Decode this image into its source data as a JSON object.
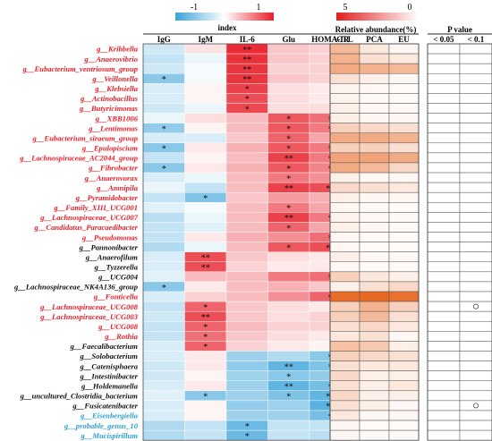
{
  "chart_data": {
    "type": "heatmap",
    "legend_corr": {
      "title": "index",
      "min_label": "-1",
      "max_label": "1",
      "colors": [
        "#3aa3d9",
        "#ffffff",
        "#e8202a"
      ]
    },
    "legend_abund": {
      "title": "Relative abundance(%)",
      "left_label": "5",
      "right_label": "0",
      "colors": [
        "#e02020",
        "#ffffff"
      ]
    },
    "pvalue_header": "P value",
    "pvalue_columns": [
      "< 0.05",
      "< 0.1"
    ],
    "corr_columns": [
      "IgG",
      "IgM",
      "IL-6",
      "Glu",
      "HOMA-IR"
    ],
    "abund_columns": [
      "CTL",
      "PCA",
      "EU"
    ],
    "label_colors": {
      "red": "#e8202a",
      "black": "#111111",
      "blue": "#2a9fd6"
    },
    "rows": [
      {
        "name": "g__Kribbella",
        "color": "red",
        "corr": [
          -0.25,
          0.12,
          0.95,
          0.25,
          0.2
        ],
        "stars": [
          "",
          "",
          "**",
          "",
          ""
        ],
        "abund": [
          0.45,
          0.15,
          0.05
        ],
        "p": [
          "",
          ""
        ]
      },
      {
        "name": "g__Anaerovibrio",
        "color": "red",
        "corr": [
          -0.3,
          -0.1,
          0.92,
          0.25,
          0.2
        ],
        "stars": [
          "",
          "",
          "**",
          "",
          ""
        ],
        "abund": [
          0.5,
          0.2,
          0.15
        ],
        "p": [
          "",
          ""
        ]
      },
      {
        "name": "g__Eubacterium_ventriosum_group",
        "color": "red",
        "corr": [
          -0.25,
          -0.05,
          0.9,
          0.2,
          0.2
        ],
        "stars": [
          "",
          "",
          "**",
          "",
          ""
        ],
        "abund": [
          0.55,
          0.5,
          0.45
        ],
        "p": [
          "",
          ""
        ]
      },
      {
        "name": "g__Veillonella",
        "color": "red",
        "corr": [
          -0.6,
          -0.05,
          0.9,
          0.25,
          0.2
        ],
        "stars": [
          "*",
          "",
          "**",
          "",
          ""
        ],
        "abund": [
          0.2,
          0.1,
          0.05
        ],
        "p": [
          "",
          ""
        ]
      },
      {
        "name": "g__Klebsiella",
        "color": "red",
        "corr": [
          -0.2,
          0.05,
          0.85,
          0.15,
          0.1
        ],
        "stars": [
          "",
          "",
          "*",
          "",
          ""
        ],
        "abund": [
          0.08,
          0.05,
          0.03
        ],
        "p": [
          "",
          ""
        ]
      },
      {
        "name": "g__Actinobacillus",
        "color": "red",
        "corr": [
          -0.2,
          0.05,
          0.8,
          0.15,
          0.1
        ],
        "stars": [
          "",
          "",
          "*",
          "",
          ""
        ],
        "abund": [
          0.08,
          0.04,
          0.03
        ],
        "p": [
          "",
          ""
        ]
      },
      {
        "name": "g__Butyricimonas",
        "color": "red",
        "corr": [
          -0.25,
          -0.1,
          0.82,
          0.15,
          0.15
        ],
        "stars": [
          "",
          "",
          "*",
          "",
          ""
        ],
        "abund": [
          0.1,
          0.05,
          0.05
        ],
        "p": [
          "",
          ""
        ]
      },
      {
        "name": "g__XBB1006",
        "color": "red",
        "corr": [
          -0.1,
          0.15,
          0.3,
          0.75,
          0.65
        ],
        "stars": [
          "",
          "",
          "",
          "*",
          "*"
        ],
        "abund": [
          0.1,
          0.05,
          0.05
        ],
        "p": [
          "",
          ""
        ]
      },
      {
        "name": "g__Lentimonas",
        "color": "red",
        "corr": [
          -0.55,
          0.05,
          0.3,
          0.75,
          0.6
        ],
        "stars": [
          "*",
          "",
          "",
          "*",
          "*"
        ],
        "abund": [
          0.3,
          0.25,
          0.2
        ],
        "p": [
          "",
          ""
        ]
      },
      {
        "name": "g__Eubacterium_siraeum_group",
        "color": "red",
        "corr": [
          -0.2,
          -0.2,
          0.25,
          0.7,
          0.4
        ],
        "stars": [
          "",
          "",
          "",
          "*",
          ""
        ],
        "abund": [
          0.55,
          0.55,
          0.5
        ],
        "p": [
          "",
          ""
        ]
      },
      {
        "name": "g__Epulopiscium",
        "color": "red",
        "corr": [
          -0.6,
          0.1,
          0.35,
          0.75,
          0.6
        ],
        "stars": [
          "*",
          "",
          "",
          "*",
          "*"
        ],
        "abund": [
          0.3,
          0.3,
          0.2
        ],
        "p": [
          "",
          ""
        ]
      },
      {
        "name": "g__Lachnospiraceae_AC2044_group",
        "color": "red",
        "corr": [
          -0.3,
          0.05,
          0.3,
          0.85,
          0.6
        ],
        "stars": [
          "",
          "",
          "",
          "**",
          "*"
        ],
        "abund": [
          0.6,
          0.6,
          0.55
        ],
        "p": [
          "",
          ""
        ]
      },
      {
        "name": "g__Fibrobacter",
        "color": "red",
        "corr": [
          -0.6,
          0.1,
          0.35,
          0.75,
          0.55
        ],
        "stars": [
          "*",
          "",
          "",
          "*",
          "*"
        ],
        "abund": [
          0.55,
          0.45,
          0.25
        ],
        "p": [
          "",
          ""
        ]
      },
      {
        "name": "g__Anaerovorax",
        "color": "red",
        "corr": [
          -0.2,
          -0.1,
          0.3,
          0.6,
          0.5
        ],
        "stars": [
          "",
          "",
          "",
          "*",
          ""
        ],
        "abund": [
          0.1,
          0.05,
          0.05
        ],
        "p": [
          "",
          ""
        ]
      },
      {
        "name": "g__Amnipila",
        "color": "red",
        "corr": [
          -0.1,
          -0.3,
          0.3,
          0.85,
          0.8
        ],
        "stars": [
          "",
          "",
          "",
          "**",
          "**"
        ],
        "abund": [
          0.25,
          0.2,
          0.15
        ],
        "p": [
          "",
          ""
        ]
      },
      {
        "name": "g__Pyramidobacter",
        "color": "red",
        "corr": [
          -0.3,
          -0.65,
          0.25,
          0.45,
          0.35
        ],
        "stars": [
          "",
          "*",
          "",
          "",
          ""
        ],
        "abund": [
          0.1,
          0.05,
          0.05
        ],
        "p": [
          "",
          ""
        ]
      },
      {
        "name": "g__Family_XIII_UCG001",
        "color": "red",
        "corr": [
          -0.15,
          -0.05,
          0.3,
          0.6,
          0.4
        ],
        "stars": [
          "",
          "",
          "",
          "*",
          ""
        ],
        "abund": [
          0.05,
          0.03,
          0.02
        ],
        "p": [
          "",
          ""
        ]
      },
      {
        "name": "g__Lachnospiraceae_UCG007",
        "color": "red",
        "corr": [
          -0.35,
          -0.1,
          0.3,
          0.85,
          0.6
        ],
        "stars": [
          "",
          "",
          "",
          "**",
          "*"
        ],
        "abund": [
          0.08,
          0.05,
          0.04
        ],
        "p": [
          "",
          ""
        ]
      },
      {
        "name": "g__Candidatus_Paracaedibacter",
        "color": "red",
        "corr": [
          -0.3,
          -0.15,
          0.3,
          0.7,
          0.4
        ],
        "stars": [
          "",
          "",
          "",
          "*",
          ""
        ],
        "abund": [
          0.1,
          0.05,
          0.03
        ],
        "p": [
          "",
          ""
        ]
      },
      {
        "name": "g__Pseudomonas",
        "color": "red",
        "corr": [
          -0.3,
          0.1,
          0.35,
          0.5,
          0.65
        ],
        "stars": [
          "",
          "",
          "",
          "",
          "*"
        ],
        "abund": [
          0.05,
          0.04,
          0.03
        ],
        "p": [
          "",
          ""
        ]
      },
      {
        "name": "g__Pannonibacter",
        "color": "black",
        "corr": [
          -0.4,
          -0.1,
          0.3,
          0.75,
          0.8
        ],
        "stars": [
          "",
          "",
          "",
          "*",
          "**"
        ],
        "abund": [
          0.05,
          0.03,
          0.03
        ],
        "p": [
          "",
          ""
        ]
      },
      {
        "name": "g__Anaerofilum",
        "color": "black",
        "corr": [
          -0.2,
          0.8,
          0.25,
          0.15,
          0.1
        ],
        "stars": [
          "",
          "**",
          "",
          "",
          ""
        ],
        "abund": [
          0.1,
          0.05,
          0.05
        ],
        "p": [
          "",
          ""
        ]
      },
      {
        "name": "g__Tyzzerella",
        "color": "black",
        "corr": [
          -0.2,
          0.8,
          0.2,
          0.1,
          0.1
        ],
        "stars": [
          "",
          "**",
          "",
          "",
          ""
        ],
        "abund": [
          0.05,
          0.03,
          0.03
        ],
        "p": [
          "",
          ""
        ]
      },
      {
        "name": "g__UCG004",
        "color": "black",
        "corr": [
          -0.15,
          0.3,
          0.3,
          0.6,
          0.65
        ],
        "stars": [
          "",
          "",
          "",
          "",
          "*"
        ],
        "abund": [
          0.3,
          0.15,
          0.1
        ],
        "p": [
          "",
          ""
        ]
      },
      {
        "name": "g__Lachnospiraceae_NK4A136_group",
        "color": "black",
        "corr": [
          -0.6,
          0.1,
          0.3,
          0.35,
          0.25
        ],
        "stars": [
          "*",
          "",
          "",
          "",
          ""
        ],
        "abund": [
          0.1,
          0.2,
          0.25
        ],
        "p": [
          "",
          ""
        ]
      },
      {
        "name": "g__Fonticella",
        "color": "red",
        "corr": [
          -0.2,
          0.2,
          0.3,
          0.5,
          0.7
        ],
        "stars": [
          "",
          "",
          "",
          "",
          "*"
        ],
        "abund": [
          0.95,
          0.98,
          0.92
        ],
        "p": [
          "",
          ""
        ]
      },
      {
        "name": "g__Lachnospiraceae_UCG008",
        "color": "red",
        "corr": [
          -0.3,
          0.7,
          0.25,
          0.15,
          0.1
        ],
        "stars": [
          "",
          "*",
          "",
          "",
          ""
        ],
        "abund": [
          0.3,
          0.5,
          0.3
        ],
        "p": [
          "",
          "o"
        ]
      },
      {
        "name": "g__Lachnospiraceae_UCG003",
        "color": "red",
        "corr": [
          -0.25,
          0.8,
          0.25,
          0.15,
          0.2
        ],
        "stars": [
          "",
          "**",
          "",
          "",
          ""
        ],
        "abund": [
          0.3,
          0.45,
          0.2
        ],
        "p": [
          "",
          ""
        ]
      },
      {
        "name": "g__UCG008",
        "color": "red",
        "corr": [
          -0.3,
          0.7,
          0.3,
          0.2,
          0.2
        ],
        "stars": [
          "",
          "*",
          "",
          "",
          ""
        ],
        "abund": [
          0.2,
          0.25,
          0.15
        ],
        "p": [
          "",
          ""
        ]
      },
      {
        "name": "g__Rothia",
        "color": "red",
        "corr": [
          -0.3,
          0.65,
          0.25,
          0.15,
          0.1
        ],
        "stars": [
          "",
          "*",
          "",
          "",
          ""
        ],
        "abund": [
          0.15,
          0.2,
          0.05
        ],
        "p": [
          "",
          ""
        ]
      },
      {
        "name": "g__Faecalibacterium",
        "color": "black",
        "corr": [
          -0.2,
          0.7,
          0.2,
          0.1,
          0.05
        ],
        "stars": [
          "",
          "*",
          "",
          "",
          ""
        ],
        "abund": [
          0.4,
          0.35,
          0.1
        ],
        "p": [
          "",
          ""
        ]
      },
      {
        "name": "g__Solobacterium",
        "color": "black",
        "corr": [
          -0.2,
          0.1,
          -0.5,
          -0.4,
          -0.6
        ],
        "stars": [
          "",
          "",
          "",
          "",
          "*"
        ],
        "abund": [
          0.3,
          0.25,
          0.2
        ],
        "p": [
          "",
          ""
        ]
      },
      {
        "name": "g__Catenisphaera",
        "color": "black",
        "corr": [
          -0.25,
          0.1,
          -0.55,
          -0.8,
          -0.65
        ],
        "stars": [
          "",
          "",
          "",
          "**",
          "*"
        ],
        "abund": [
          0.2,
          0.15,
          0.15
        ],
        "p": [
          "",
          ""
        ]
      },
      {
        "name": "g__Intestinibacter",
        "color": "black",
        "corr": [
          -0.25,
          0.05,
          -0.5,
          -0.6,
          -0.55
        ],
        "stars": [
          "",
          "",
          "",
          "*",
          ""
        ],
        "abund": [
          0.25,
          0.1,
          0.1
        ],
        "p": [
          "",
          ""
        ]
      },
      {
        "name": "g__Holdemanella",
        "color": "black",
        "corr": [
          -0.2,
          0.1,
          -0.5,
          -0.8,
          -0.7
        ],
        "stars": [
          "",
          "",
          "",
          "**",
          "*"
        ],
        "abund": [
          0.2,
          0.1,
          0.15
        ],
        "p": [
          "",
          ""
        ]
      },
      {
        "name": "g__uncultured_Clostridia_bacterium",
        "color": "black",
        "corr": [
          -0.15,
          -0.6,
          -0.5,
          -0.65,
          -0.8
        ],
        "stars": [
          "",
          "*",
          "",
          "*",
          "**"
        ],
        "abund": [
          0.25,
          0.1,
          0.1
        ],
        "p": [
          "",
          ""
        ]
      },
      {
        "name": "g__Fusicatenibacter",
        "color": "black",
        "corr": [
          -0.2,
          0.05,
          -0.55,
          -0.5,
          -0.85
        ],
        "stars": [
          "",
          "",
          "",
          "",
          "**"
        ],
        "abund": [
          0.2,
          0.1,
          0.05
        ],
        "p": [
          "",
          "o"
        ]
      },
      {
        "name": "g__Eisenbergiella",
        "color": "blue",
        "corr": [
          -0.2,
          0.05,
          -0.5,
          -0.5,
          -0.7
        ],
        "stars": [
          "",
          "",
          "",
          "",
          "*"
        ],
        "abund": [
          0.15,
          0.05,
          0.05
        ],
        "p": [
          "",
          ""
        ]
      },
      {
        "name": "g__probable_genus_10",
        "color": "blue",
        "corr": [
          -0.4,
          -0.3,
          -0.75,
          -0.3,
          -0.3
        ],
        "stars": [
          "",
          "",
          "*",
          "",
          ""
        ],
        "abund": [
          0.05,
          0.03,
          0.03
        ],
        "p": [
          "",
          ""
        ]
      },
      {
        "name": "g__Mucispirillum",
        "color": "blue",
        "corr": [
          -0.4,
          -0.3,
          -0.75,
          -0.3,
          -0.35
        ],
        "stars": [
          "",
          "",
          "*",
          "",
          ""
        ],
        "abund": [
          0.05,
          0.03,
          0.03
        ],
        "p": [
          "",
          ""
        ]
      }
    ]
  }
}
